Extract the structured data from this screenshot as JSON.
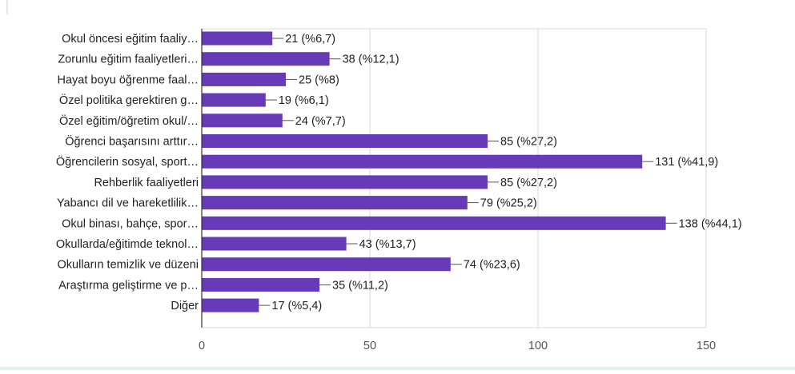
{
  "chart_data": {
    "type": "bar",
    "orientation": "horizontal",
    "categories": [
      "Okul öncesi eğitim faaliy…",
      "Zorunlu eğitim faaliyetleri…",
      "Hayat boyu öğrenme faal…",
      "Özel politika gerektiren g…",
      "Özel eğitim/öğretim okul/…",
      "Öğrenci başarısını arttır…",
      "Öğrencilerin sosyal, sport…",
      "Rehberlik faaliyetleri",
      "Yabancı dil ve hareketlilik…",
      "Okul binası, bahçe, spor…",
      "Okullarda/eğitimde teknol…",
      "Okulların temizlik ve düzeni",
      "Araştırma geliştirme ve p…",
      "Diğer"
    ],
    "values": [
      21,
      38,
      25,
      19,
      24,
      85,
      131,
      85,
      79,
      138,
      43,
      74,
      35,
      17
    ],
    "value_labels": [
      "21 (%6,7)",
      "38 (%12,1)",
      "25 (%8)",
      "19 (%6,1)",
      "24 (%7,7)",
      "85 (%27,2)",
      "131 (%41,9)",
      "85 (%27,2)",
      "79 (%25,2)",
      "138 (%44,1)",
      "43 (%13,7)",
      "74 (%23,6)",
      "35 (%11,2)",
      "17 (%5,4)"
    ],
    "xticks": [
      0,
      50,
      100,
      150
    ],
    "xtick_labels": [
      "0",
      "50",
      "100",
      "150"
    ],
    "xlim": [
      0,
      150
    ],
    "grid": true,
    "bar_color": "#673ab7",
    "title": "",
    "xlabel": "",
    "ylabel": ""
  }
}
